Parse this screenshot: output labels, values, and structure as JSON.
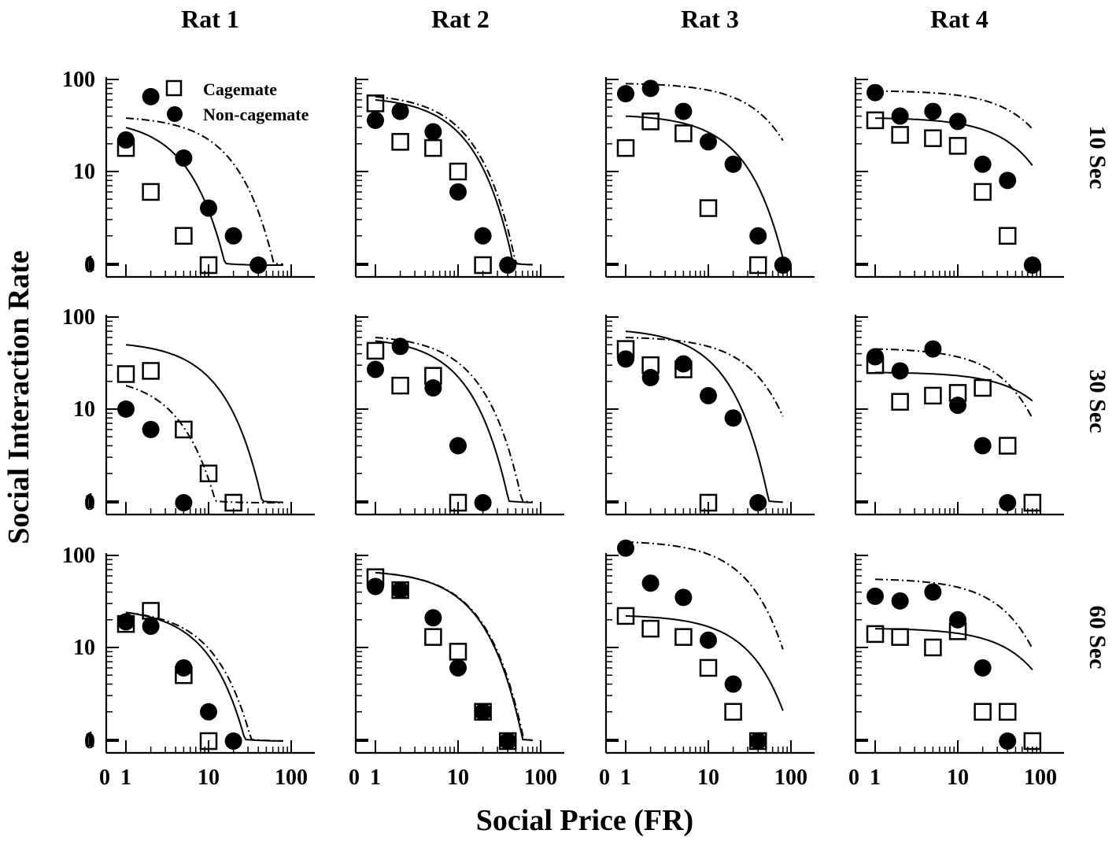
{
  "figure": {
    "ylabel": "Social Interaction Rate",
    "xlabel": "Social Price (FR)",
    "col_titles": [
      "Rat 1",
      "Rat 2",
      "Rat 3",
      "Rat 4"
    ],
    "row_titles": [
      "10 Sec",
      "30 Sec",
      "60 Sec"
    ],
    "legend": [
      "Cagemate",
      "Non-cagemate"
    ],
    "x_tick_labels": [
      "0",
      "1",
      "10",
      "100"
    ],
    "y_tick_labels": [
      "100",
      "10",
      "1",
      "0"
    ]
  },
  "chart_data": {
    "type": "scatter",
    "x_scale": "log (with 0 break)",
    "y_scale": "log (with 0 break)",
    "xlim": [
      0,
      100
    ],
    "ylim": [
      0,
      100
    ],
    "series_names": [
      "Cagemate",
      "Non-cagemate"
    ],
    "series_styles": {
      "Cagemate": "open square, solid fit line",
      "Non-cagemate": "filled circle, dash-dot fit line"
    },
    "panels": [
      {
        "row": "10 Sec",
        "col": "Rat 1",
        "cagemate": [
          [
            1,
            18
          ],
          [
            2,
            6
          ],
          [
            5,
            2
          ],
          [
            10,
            0
          ]
        ],
        "cagemate_fit": {
          "q0": 30,
          "k": 0.23
        },
        "noncagemate": [
          [
            1,
            22
          ],
          [
            2,
            65
          ],
          [
            5,
            14
          ],
          [
            10,
            4
          ],
          [
            20,
            2
          ],
          [
            40,
            0
          ]
        ],
        "noncagemate_fit": {
          "q0": 38,
          "k": 0.06
        }
      },
      {
        "row": "10 Sec",
        "col": "Rat 2",
        "cagemate": [
          [
            1,
            55
          ],
          [
            2,
            21
          ],
          [
            5,
            18
          ],
          [
            10,
            10
          ],
          [
            20,
            0
          ]
        ],
        "cagemate_fit": {
          "q0": 60,
          "k": 0.09
        },
        "noncagemate": [
          [
            1,
            36
          ],
          [
            2,
            45
          ],
          [
            5,
            27
          ],
          [
            10,
            6
          ],
          [
            20,
            2
          ],
          [
            40,
            0
          ]
        ],
        "noncagemate_fit": {
          "q0": 65,
          "k": 0.085
        }
      },
      {
        "row": "10 Sec",
        "col": "Rat 3",
        "cagemate": [
          [
            1,
            18
          ],
          [
            2,
            35
          ],
          [
            5,
            26
          ],
          [
            10,
            4
          ],
          [
            40,
            0
          ]
        ],
        "cagemate_fit": {
          "q0": 40,
          "k": 0.045
        },
        "noncagemate": [
          [
            1,
            70
          ],
          [
            2,
            80
          ],
          [
            5,
            45
          ],
          [
            10,
            21
          ],
          [
            20,
            12
          ],
          [
            40,
            2
          ],
          [
            80,
            0
          ]
        ],
        "noncagemate_fit": {
          "q0": 90,
          "k": 0.018
        }
      },
      {
        "row": "10 Sec",
        "col": "Rat 4",
        "cagemate": [
          [
            1,
            36
          ],
          [
            2,
            25
          ],
          [
            5,
            23
          ],
          [
            10,
            19
          ],
          [
            20,
            6
          ],
          [
            40,
            2
          ]
        ],
        "cagemate_fit": {
          "q0": 38,
          "k": 0.015
        },
        "noncagemate": [
          [
            1,
            72
          ],
          [
            2,
            40
          ],
          [
            5,
            45
          ],
          [
            10,
            35
          ],
          [
            20,
            12
          ],
          [
            40,
            8
          ],
          [
            80,
            0
          ]
        ],
        "noncagemate_fit": {
          "q0": 75,
          "k": 0.012
        }
      },
      {
        "row": "30 Sec",
        "col": "Rat 1",
        "cagemate": [
          [
            1,
            24
          ],
          [
            2,
            26
          ],
          [
            5,
            6
          ],
          [
            10,
            2
          ],
          [
            20,
            0
          ]
        ],
        "cagemate_fit": {
          "q0": 50,
          "k": 0.09
        },
        "noncagemate": [
          [
            1,
            10
          ],
          [
            2,
            6
          ],
          [
            5,
            0
          ]
        ],
        "noncagemate_fit": {
          "q0": 18,
          "k": 0.26
        }
      },
      {
        "row": "30 Sec",
        "col": "Rat 2",
        "cagemate": [
          [
            1,
            43
          ],
          [
            2,
            18
          ],
          [
            5,
            23
          ],
          [
            10,
            0
          ]
        ],
        "cagemate_fit": {
          "q0": 55,
          "k": 0.1
        },
        "noncagemate": [
          [
            1,
            27
          ],
          [
            2,
            48
          ],
          [
            5,
            17
          ],
          [
            10,
            4
          ],
          [
            20,
            0
          ]
        ],
        "noncagemate_fit": {
          "q0": 60,
          "k": 0.07
        }
      },
      {
        "row": "30 Sec",
        "col": "Rat 3",
        "cagemate": [
          [
            1,
            45
          ],
          [
            2,
            30
          ],
          [
            5,
            27
          ],
          [
            10,
            0
          ]
        ],
        "cagemate_fit": {
          "q0": 70,
          "k": 0.08
        },
        "noncagemate": [
          [
            1,
            35
          ],
          [
            2,
            22
          ],
          [
            5,
            31
          ],
          [
            10,
            14
          ],
          [
            20,
            8
          ],
          [
            40,
            0
          ]
        ],
        "noncagemate_fit": {
          "q0": 60,
          "k": 0.025
        }
      },
      {
        "row": "30 Sec",
        "col": "Rat 4",
        "cagemate": [
          [
            1,
            30
          ],
          [
            2,
            12
          ],
          [
            5,
            14
          ],
          [
            10,
            15
          ],
          [
            20,
            17
          ],
          [
            40,
            4
          ],
          [
            80,
            0
          ]
        ],
        "cagemate_fit": {
          "q0": 25,
          "k": 0.009
        },
        "noncagemate": [
          [
            1,
            37
          ],
          [
            2,
            26
          ],
          [
            5,
            45
          ],
          [
            10,
            11
          ],
          [
            20,
            4
          ],
          [
            40,
            0
          ]
        ],
        "noncagemate_fit": {
          "q0": 45,
          "k": 0.022
        }
      },
      {
        "row": "60 Sec",
        "col": "Rat 1",
        "cagemate": [
          [
            1,
            18
          ],
          [
            2,
            25
          ],
          [
            5,
            5
          ],
          [
            10,
            0
          ]
        ],
        "cagemate_fit": {
          "q0": 24,
          "k": 0.12
        },
        "noncagemate": [
          [
            1,
            19
          ],
          [
            2,
            17
          ],
          [
            5,
            6
          ],
          [
            10,
            2
          ],
          [
            20,
            0
          ]
        ],
        "noncagemate_fit": {
          "q0": 24,
          "k": 0.1
        }
      },
      {
        "row": "60 Sec",
        "col": "Rat 2",
        "cagemate": [
          [
            1,
            58
          ],
          [
            2,
            42
          ],
          [
            5,
            13
          ],
          [
            10,
            9
          ],
          [
            20,
            2
          ],
          [
            40,
            0
          ]
        ],
        "cagemate_fit": {
          "q0": 65,
          "k": 0.07
        },
        "noncagemate": [
          [
            1,
            46
          ],
          [
            2,
            42
          ],
          [
            5,
            21
          ],
          [
            10,
            6
          ],
          [
            20,
            2
          ],
          [
            40,
            0
          ]
        ],
        "noncagemate_fit": {
          "q0": 65,
          "k": 0.068
        }
      },
      {
        "row": "60 Sec",
        "col": "Rat 3",
        "cagemate": [
          [
            1,
            22
          ],
          [
            2,
            16
          ],
          [
            5,
            13
          ],
          [
            10,
            6
          ],
          [
            20,
            2
          ],
          [
            40,
            0
          ]
        ],
        "cagemate_fit": {
          "q0": 22,
          "k": 0.03
        },
        "noncagemate": [
          [
            1,
            120
          ],
          [
            2,
            50
          ],
          [
            5,
            35
          ],
          [
            10,
            12
          ],
          [
            20,
            4
          ],
          [
            40,
            0
          ]
        ],
        "noncagemate_fit": {
          "q0": 140,
          "k": 0.034
        }
      },
      {
        "row": "60 Sec",
        "col": "Rat 4",
        "cagemate": [
          [
            1,
            14
          ],
          [
            2,
            13
          ],
          [
            5,
            10
          ],
          [
            10,
            15
          ],
          [
            20,
            2
          ],
          [
            40,
            2
          ],
          [
            80,
            0
          ]
        ],
        "cagemate_fit": {
          "q0": 16,
          "k": 0.013
        },
        "noncagemate": [
          [
            1,
            36
          ],
          [
            2,
            32
          ],
          [
            5,
            40
          ],
          [
            10,
            20
          ],
          [
            20,
            6
          ],
          [
            40,
            0
          ]
        ],
        "noncagemate_fit": {
          "q0": 55,
          "k": 0.022
        }
      }
    ]
  }
}
